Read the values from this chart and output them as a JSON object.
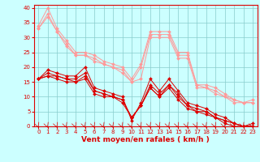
{
  "x": [
    0,
    1,
    2,
    3,
    4,
    5,
    6,
    7,
    8,
    9,
    10,
    11,
    12,
    13,
    14,
    15,
    16,
    17,
    18,
    19,
    20,
    21,
    22,
    23
  ],
  "lines_dark": [
    [
      16,
      19,
      18,
      17,
      17,
      20,
      13,
      12,
      11,
      10,
      2,
      8,
      16,
      12,
      16,
      12,
      8,
      7,
      6,
      4,
      3,
      1,
      0,
      1
    ],
    [
      16,
      18,
      17,
      16,
      16,
      18,
      12,
      11,
      10,
      9,
      3,
      7,
      14,
      11,
      14,
      11,
      7,
      6,
      5,
      3,
      2,
      1,
      0,
      0
    ],
    [
      16,
      17,
      17,
      16,
      15,
      17,
      12,
      11,
      10,
      9,
      3,
      7,
      13,
      10,
      14,
      10,
      7,
      5,
      5,
      3,
      2,
      1,
      0,
      0
    ],
    [
      16,
      17,
      16,
      15,
      15,
      16,
      11,
      10,
      10,
      8,
      3,
      7,
      13,
      10,
      13,
      9,
      6,
      5,
      4,
      3,
      1,
      0,
      0,
      0
    ]
  ],
  "lines_light": [
    [
      34,
      40,
      33,
      29,
      25,
      25,
      24,
      22,
      21,
      20,
      16,
      21,
      32,
      32,
      32,
      25,
      25,
      14,
      14,
      13,
      11,
      9,
      8,
      9
    ],
    [
      33,
      38,
      32,
      28,
      24,
      24,
      23,
      21,
      20,
      19,
      15,
      20,
      31,
      31,
      31,
      24,
      24,
      14,
      13,
      12,
      10,
      9,
      8,
      8
    ],
    [
      33,
      37,
      32,
      27,
      24,
      24,
      22,
      21,
      20,
      18,
      15,
      16,
      30,
      30,
      30,
      23,
      23,
      13,
      13,
      11,
      10,
      8,
      8,
      8
    ]
  ],
  "color_dark": "#dd0000",
  "color_light": "#ff9999",
  "bg_color": "#ccffff",
  "grid_color": "#88cccc",
  "xlabel": "Vent moyen/en rafales ( km/h )",
  "ylim": [
    0,
    41
  ],
  "xlim": [
    -0.5,
    23.5
  ],
  "yticks": [
    0,
    5,
    10,
    15,
    20,
    25,
    30,
    35,
    40
  ],
  "xticks": [
    0,
    1,
    2,
    3,
    4,
    5,
    6,
    7,
    8,
    9,
    10,
    11,
    12,
    13,
    14,
    15,
    16,
    17,
    18,
    19,
    20,
    21,
    22,
    23
  ],
  "tick_fontsize": 5,
  "xlabel_fontsize": 6.5,
  "linewidth": 0.7,
  "markersize": 2.0
}
